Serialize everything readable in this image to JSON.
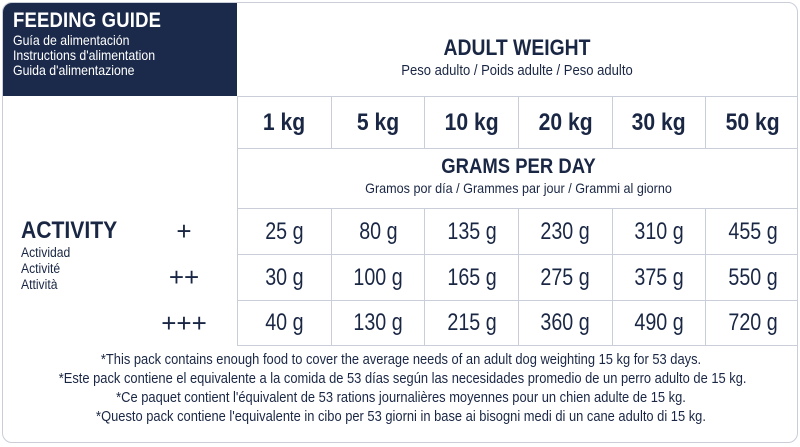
{
  "header": {
    "title": "FEEDING GUIDE",
    "subtitles": [
      "Guía de alimentación",
      "Instructions d'alimentation",
      "Guida d'alimentazione"
    ]
  },
  "adult_weight": {
    "title": "ADULT WEIGHT",
    "subtitle": "Peso adulto / Poids adulte / Peso adulto"
  },
  "weights": [
    "1 kg",
    "5 kg",
    "10 kg",
    "20 kg",
    "30 kg",
    "50 kg"
  ],
  "grams_per_day": {
    "title": "GRAMS PER DAY",
    "subtitle": "Gramos por día / Grammes par jour / Grammi al giorno"
  },
  "activity": {
    "title": "ACTIVITY",
    "subtitles": [
      "Actividad",
      "Activité",
      "Attività"
    ],
    "levels": [
      {
        "label": "+",
        "values": [
          "25 g",
          "80 g",
          "135 g",
          "230 g",
          "310 g",
          "455 g"
        ]
      },
      {
        "label": "++",
        "values": [
          "30 g",
          "100 g",
          "165 g",
          "275 g",
          "375 g",
          "550 g"
        ]
      },
      {
        "label": "+++",
        "values": [
          "40 g",
          "130 g",
          "215 g",
          "360 g",
          "490 g",
          "720 g"
        ]
      }
    ]
  },
  "notes": [
    "*This pack contains enough food to cover the average needs of an adult dog weighting 15 kg for 53 days.",
    "*Este pack contiene el equivalente a la comida de 53 días según las necesidades promedio de un perro adulto de 15 kg.",
    "*Ce paquet contient l'équivalent de 53 rations journalières moyennes pour un chien adulte de 15 kg.",
    "*Questo pack contiene l'equivalente in cibo per 53 giorni in base ai bisogni medi di un cane adulto di 15 kg."
  ],
  "colors": {
    "navy": "#1b2a4a",
    "text": "#1a2744",
    "rule": "#c9ced8"
  }
}
